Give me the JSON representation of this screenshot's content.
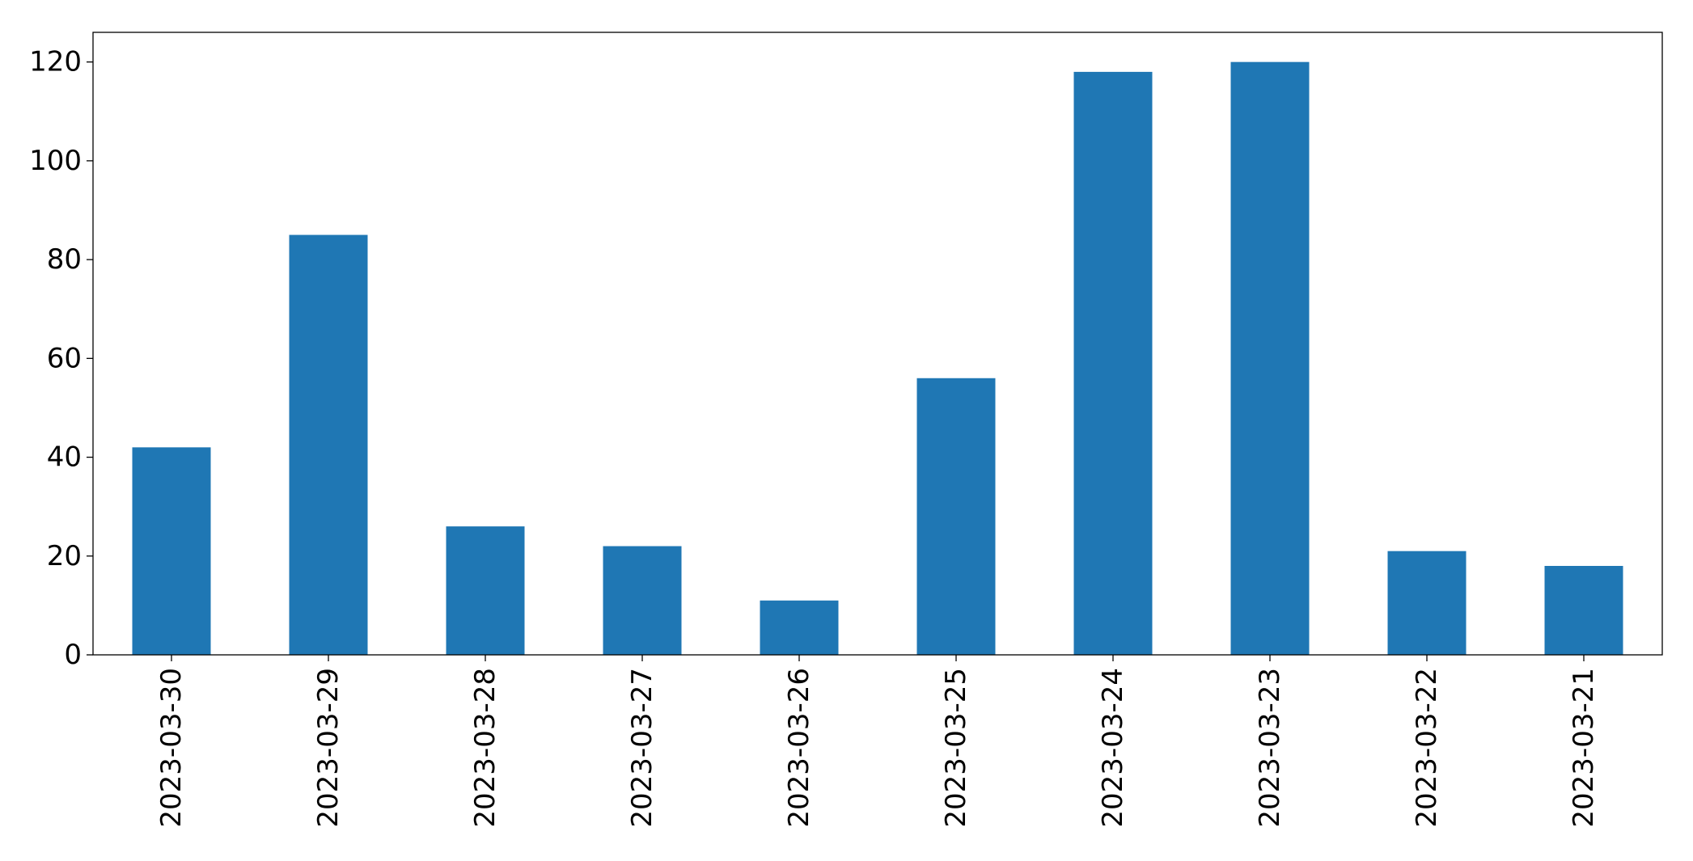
{
  "chart_data": {
    "type": "bar",
    "categories": [
      "2023-03-30",
      "2023-03-29",
      "2023-03-28",
      "2023-03-27",
      "2023-03-26",
      "2023-03-25",
      "2023-03-24",
      "2023-03-23",
      "2023-03-22",
      "2023-03-21"
    ],
    "values": [
      42,
      85,
      26,
      22,
      11,
      56,
      118,
      120,
      21,
      18
    ],
    "title": "",
    "xlabel": "",
    "ylabel": "",
    "ylim": [
      0,
      126
    ],
    "yticks": [
      0,
      20,
      40,
      60,
      80,
      100,
      120
    ],
    "grid": false,
    "legend": "none",
    "bar_color": "#1f77b4"
  }
}
